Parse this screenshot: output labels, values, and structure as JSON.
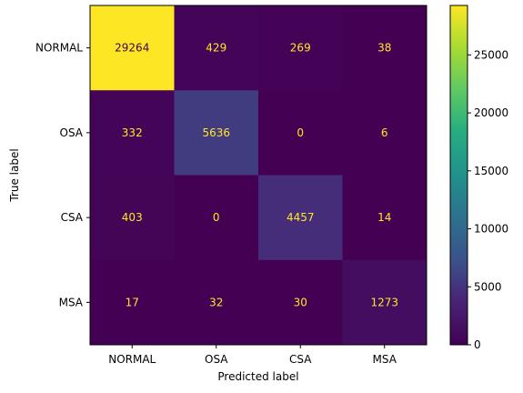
{
  "chart_data": {
    "type": "heatmap",
    "colormap": "viridis",
    "xlabel": "Predicted label",
    "ylabel": "True label",
    "x_categories": [
      "NORMAL",
      "OSA",
      "CSA",
      "MSA"
    ],
    "y_categories": [
      "NORMAL",
      "OSA",
      "CSA",
      "MSA"
    ],
    "values": [
      [
        29264,
        429,
        269,
        38
      ],
      [
        332,
        5636,
        0,
        6
      ],
      [
        403,
        0,
        4457,
        14
      ],
      [
        17,
        32,
        30,
        1273
      ]
    ],
    "colorbar": {
      "min": 0,
      "max": 29264,
      "ticks": [
        0,
        5000,
        10000,
        15000,
        20000,
        25000
      ]
    },
    "annotation_color_dark": "#fde725",
    "annotation_color_light": "#440154"
  }
}
